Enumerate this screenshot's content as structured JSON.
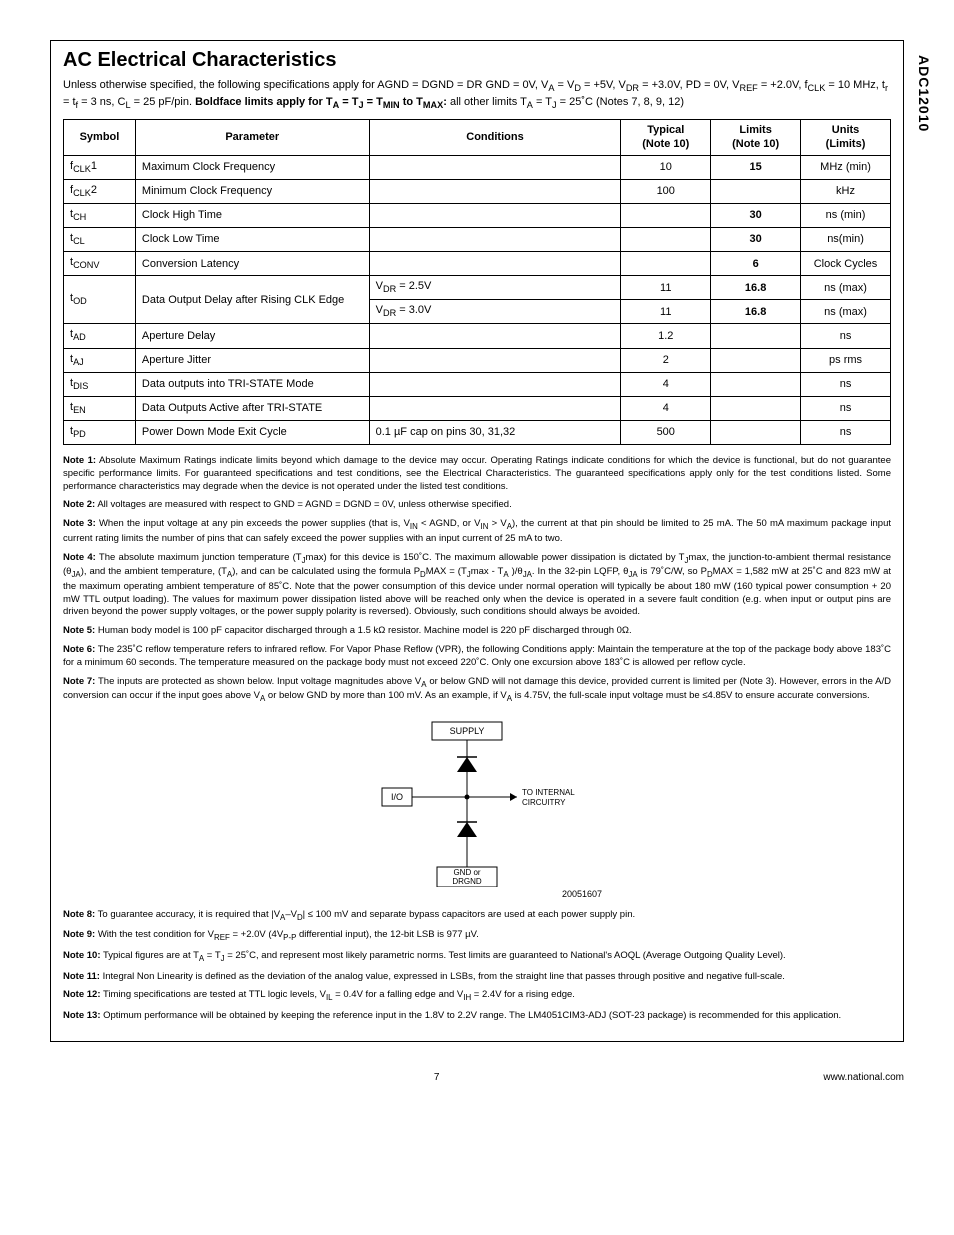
{
  "sideLabel": "ADC12010",
  "title": "AC Electrical Characteristics",
  "intro_html": "Unless otherwise specified, the following specifications apply for AGND = DGND = DR GND = 0V, V<sub>A</sub> = V<sub>D</sub> = +5V, V<sub>DR</sub> = +3.0V, PD = 0V, V<sub>REF</sub> = +2.0V, f<sub>CLK</sub> = 10 MHz, t<sub>r</sub> = t<sub>f</sub> = 3 ns, C<sub>L</sub> = 25 pF/pin. <b>Boldface limits apply for T<sub>A</sub> = T<sub>J</sub> = T<sub>MIN</sub> to T<sub>MAX</sub>:</b> all other limits T<sub>A</sub> = T<sub>J</sub> = 25˚C (Notes 7, 8, 9, 12)",
  "headers": {
    "symbol": "Symbol",
    "parameter": "Parameter",
    "conditions": "Conditions",
    "typical": "Typical",
    "typical_sub": "(Note 10)",
    "limits": "Limits",
    "limits_sub": "(Note 10)",
    "units": "Units",
    "units_sub": "(Limits)"
  },
  "rows": [
    {
      "symbol_html": "f<sub>CLK</sub>1",
      "param": "Maximum Clock Frequency",
      "cond": "",
      "typ": "10",
      "lim": "15",
      "limBold": true,
      "unit": "MHz (min)"
    },
    {
      "symbol_html": "f<sub>CLK</sub>2",
      "param": "Minimum Clock Frequency",
      "cond": "",
      "typ": "100",
      "lim": "",
      "unit": "kHz"
    },
    {
      "symbol_html": "t<sub>CH</sub>",
      "param": "Clock High Time",
      "cond": "",
      "typ": "",
      "lim": "30",
      "limBold": true,
      "unit": "ns (min)"
    },
    {
      "symbol_html": "t<sub>CL</sub>",
      "param": "Clock Low Time",
      "cond": "",
      "typ": "",
      "lim": "30",
      "limBold": true,
      "unit": "ns(min)"
    },
    {
      "symbol_html": "t<sub>CONV</sub>",
      "param": "Conversion Latency",
      "cond": "",
      "typ": "",
      "lim": "6",
      "limBold": true,
      "unit": "Clock Cycles"
    },
    {
      "symbol_html": "t<sub>OD</sub>",
      "rowspan": 2,
      "param": "Data Output Delay after Rising CLK Edge",
      "paramRowspan": 2,
      "subrows": [
        {
          "cond_html": "V<sub>DR</sub> = 2.5V",
          "typ": "11",
          "lim": "16.8",
          "limBold": true,
          "unit": "ns (max)"
        },
        {
          "cond_html": "V<sub>DR</sub> = 3.0V",
          "typ": "11",
          "lim": "16.8",
          "limBold": true,
          "unit": "ns (max)"
        }
      ]
    },
    {
      "symbol_html": "t<sub>AD</sub>",
      "param": "Aperture Delay",
      "cond": "",
      "typ": "1.2",
      "lim": "",
      "unit": "ns"
    },
    {
      "symbol_html": "t<sub>AJ</sub>",
      "param": "Aperture Jitter",
      "cond": "",
      "typ": "2",
      "lim": "",
      "unit": "ps rms"
    },
    {
      "symbol_html": "t<sub>DIS</sub>",
      "param": "Data outputs into TRI-STATE Mode",
      "cond": "",
      "typ": "4",
      "lim": "",
      "unit": "ns"
    },
    {
      "symbol_html": "t<sub>EN</sub>",
      "param": "Data Outputs Active after TRI-STATE",
      "cond": "",
      "typ": "4",
      "lim": "",
      "unit": "ns"
    },
    {
      "symbol_html": "t<sub>PD</sub>",
      "param": "Power Down Mode Exit Cycle",
      "cond": "0.1 µF cap on pins 30, 31,32",
      "typ": "500",
      "lim": "",
      "unit": "ns"
    }
  ],
  "notes": [
    {
      "n": "Note 1:",
      "html": "Absolute Maximum Ratings indicate limits beyond which damage to the device may occur. Operating Ratings indicate conditions for which the device is functional, but do not guarantee specific performance limits. For guaranteed specifications and test conditions, see the Electrical Characteristics. The guaranteed specifications apply only for the test conditions listed. Some performance characteristics may degrade when the device is not operated under the listed test conditions."
    },
    {
      "n": "Note 2:",
      "html": "All voltages are measured with respect to GND = AGND = DGND = 0V, unless otherwise specified."
    },
    {
      "n": "Note 3:",
      "html": "When the input voltage at any pin exceeds the power supplies (that is, V<sub>IN</sub> &lt; AGND, or V<sub>IN</sub> &gt; V<sub>A</sub>), the current at that pin should be limited to 25 mA. The 50 mA maximum package input current rating limits the number of pins that can safely exceed the power supplies with an input current of 25 mA to two."
    },
    {
      "n": "Note 4:",
      "html": "The absolute maximum junction temperature (T<sub>J</sub>max) for this device is 150˚C. The maximum allowable power dissipation is dictated by T<sub>J</sub>max, the junction-to-ambient thermal resistance (θ<sub>JA</sub>), and the ambient temperature, (T<sub>A</sub>), and can be calculated using the formula P<sub>D</sub>MAX = (T<sub>J</sub>max - T<sub>A</sub> )/θ<sub>JA</sub>. In the 32-pin LQFP, θ<sub>JA</sub> is 79˚C/W, so P<sub>D</sub>MAX = 1,582 mW at 25˚C and 823 mW at the maximum operating ambient temperature of 85˚C. Note that the power consumption of this device under normal operation will typically be about 180 mW (160 typical power consumption + 20 mW TTL output loading). The values for maximum power dissipation listed above will be reached only when the device is operated in a severe fault condition (e.g. when input or output pins are driven beyond the power supply voltages, or the power supply polarity is reversed). Obviously, such conditions should always be avoided."
    },
    {
      "n": "Note 5:",
      "html": "Human body model is 100 pF capacitor discharged through a 1.5 kΩ resistor. Machine model is 220 pF discharged through 0Ω."
    },
    {
      "n": "Note 6:",
      "html": "The 235˚C reflow temperature refers to infrared reflow. For Vapor Phase Reflow (VPR), the following Conditions apply: Maintain the temperature at the top of the package body above 183˚C for a minimum 60 seconds. The temperature measured on the package body must not exceed 220˚C. Only one excursion above 183˚C is allowed per reflow cycle."
    },
    {
      "n": "Note 7:",
      "html": "The inputs are protected as shown below. Input voltage magnitudes above V<sub>A</sub> or below GND will not damage this device, provided current is limited per (Note 3). However, errors in the A/D conversion can occur if the input goes above V<sub>A</sub> or below GND by more than 100 mV. As an example, if V<sub>A</sub> is 4.75V, the full-scale input voltage must be ≤4.85V to ensure accurate conversions."
    }
  ],
  "diagram": {
    "supply": "SUPPLY",
    "io": "I/O",
    "internal": "TO INTERNAL CIRCUITRY",
    "gnd": "GND or DRGND",
    "id": "20051607"
  },
  "notes2": [
    {
      "n": "Note 8:",
      "html": "To guarantee accuracy, it is required that |V<sub>A</sub>–V<sub>D</sub>| ≤ 100 mV and separate bypass capacitors are used at each power supply pin."
    },
    {
      "n": "Note 9:",
      "html": "With the test condition for V<sub>REF</sub> = +2.0V (4V<sub>P-P</sub> differential input), the 12-bit LSB is 977 µV."
    },
    {
      "n": "Note 10:",
      "html": "Typical figures are at T<sub>A</sub> = T<sub>J</sub> = 25˚C, and represent most likely parametric norms. Test limits are guaranteed to National's AOQL (Average Outgoing Quality Level)."
    },
    {
      "n": "Note 11:",
      "html": "Integral Non Linearity is defined as the deviation of the analog value, expressed in LSBs, from the straight line that passes through positive and negative full-scale."
    },
    {
      "n": "Note 12:",
      "html": "Timing specifications are tested at TTL logic levels, V<sub>IL</sub> = 0.4V for a falling edge and V<sub>IH</sub> = 2.4V for a rising edge."
    },
    {
      "n": "Note 13:",
      "html": "Optimum performance will be obtained by keeping the reference input in the 1.8V to 2.2V range. The LM4051CIM3-ADJ (SOT-23 package) is recommended for this application."
    }
  ],
  "footer": {
    "page": "7",
    "url": "www.national.com"
  }
}
